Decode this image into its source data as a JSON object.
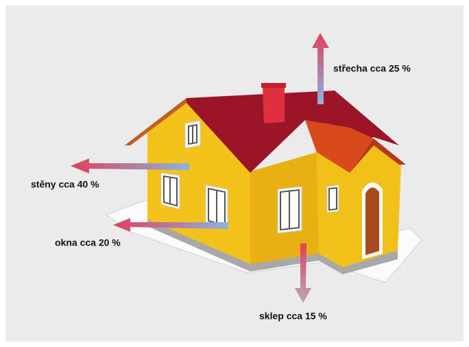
{
  "labels": [
    "střecha cca 25 %",
    "stěny cca 40 %",
    "okna cca 20 %",
    "sklep cca 15 %"
  ]
}
